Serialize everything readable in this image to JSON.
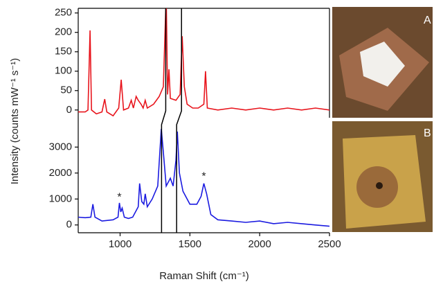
{
  "chart_data": [
    {
      "type": "line",
      "ylabel": "Intensity (counts mW⁻¹ s⁻¹)",
      "x": [
        700,
        750,
        770,
        785,
        795,
        830,
        870,
        890,
        905,
        950,
        970,
        990,
        1008,
        1025,
        1060,
        1080,
        1095,
        1115,
        1130,
        1150,
        1165,
        1180,
        1195,
        1240,
        1280,
        1310,
        1330,
        1340,
        1350,
        1360,
        1400,
        1430,
        1445,
        1460,
        1480,
        1520,
        1560,
        1600,
        1612,
        1625,
        1700,
        1800,
        1900,
        2000,
        2100,
        2200,
        2300,
        2400,
        2500
      ],
      "series": [
        {
          "color": "#e8141c",
          "values": [
            -5,
            -5,
            0,
            205,
            0,
            -10,
            -5,
            28,
            -5,
            -15,
            -5,
            5,
            78,
            0,
            5,
            25,
            5,
            35,
            25,
            15,
            5,
            25,
            5,
            15,
            35,
            60,
            300,
            40,
            105,
            30,
            25,
            40,
            190,
            60,
            15,
            5,
            5,
            15,
            100,
            5,
            0,
            5,
            0,
            5,
            0,
            5,
            0,
            5,
            0
          ]
        }
      ],
      "xlim": [
        700,
        2500
      ],
      "ylim": [
        -20,
        262
      ],
      "yticks": [
        0,
        50,
        100,
        150,
        200,
        250
      ]
    },
    {
      "type": "line",
      "xlabel": "Raman Shift (cm⁻¹)",
      "x": [
        700,
        750,
        790,
        805,
        820,
        870,
        950,
        985,
        995,
        1005,
        1015,
        1030,
        1060,
        1090,
        1110,
        1130,
        1140,
        1155,
        1170,
        1180,
        1195,
        1230,
        1270,
        1295,
        1310,
        1330,
        1350,
        1360,
        1380,
        1400,
        1410,
        1425,
        1450,
        1500,
        1550,
        1580,
        1600,
        1620,
        1650,
        1700,
        1800,
        1900,
        2000,
        2100,
        2200,
        2300,
        2400,
        2500
      ],
      "series": [
        {
          "color": "#1a1ae0",
          "values": [
            300,
            280,
            300,
            800,
            300,
            150,
            200,
            300,
            850,
            500,
            650,
            300,
            250,
            300,
            500,
            700,
            1600,
            900,
            800,
            1200,
            700,
            1000,
            1500,
            3700,
            2800,
            1500,
            1700,
            1800,
            1500,
            2500,
            3600,
            2000,
            1300,
            800,
            800,
            1100,
            1600,
            1200,
            400,
            200,
            150,
            100,
            150,
            50,
            100,
            50,
            0,
            -50
          ]
        }
      ],
      "annotations": [
        {
          "text": "*",
          "x": 995,
          "y": 1050
        },
        {
          "text": "*",
          "x": 1600,
          "y": 1850
        }
      ],
      "connectors": [
        {
          "top": 1327,
          "bottom": 1297
        },
        {
          "top": 1440,
          "bottom": 1405
        }
      ],
      "xlim": [
        700,
        2500
      ],
      "ylim": [
        -300,
        4130
      ],
      "yticks": [
        0,
        1000,
        2000,
        3000
      ],
      "xticks": [
        1000,
        1500,
        2000,
        2500
      ]
    }
  ],
  "panels": [
    {
      "label": "A"
    },
    {
      "label": "B"
    }
  ]
}
